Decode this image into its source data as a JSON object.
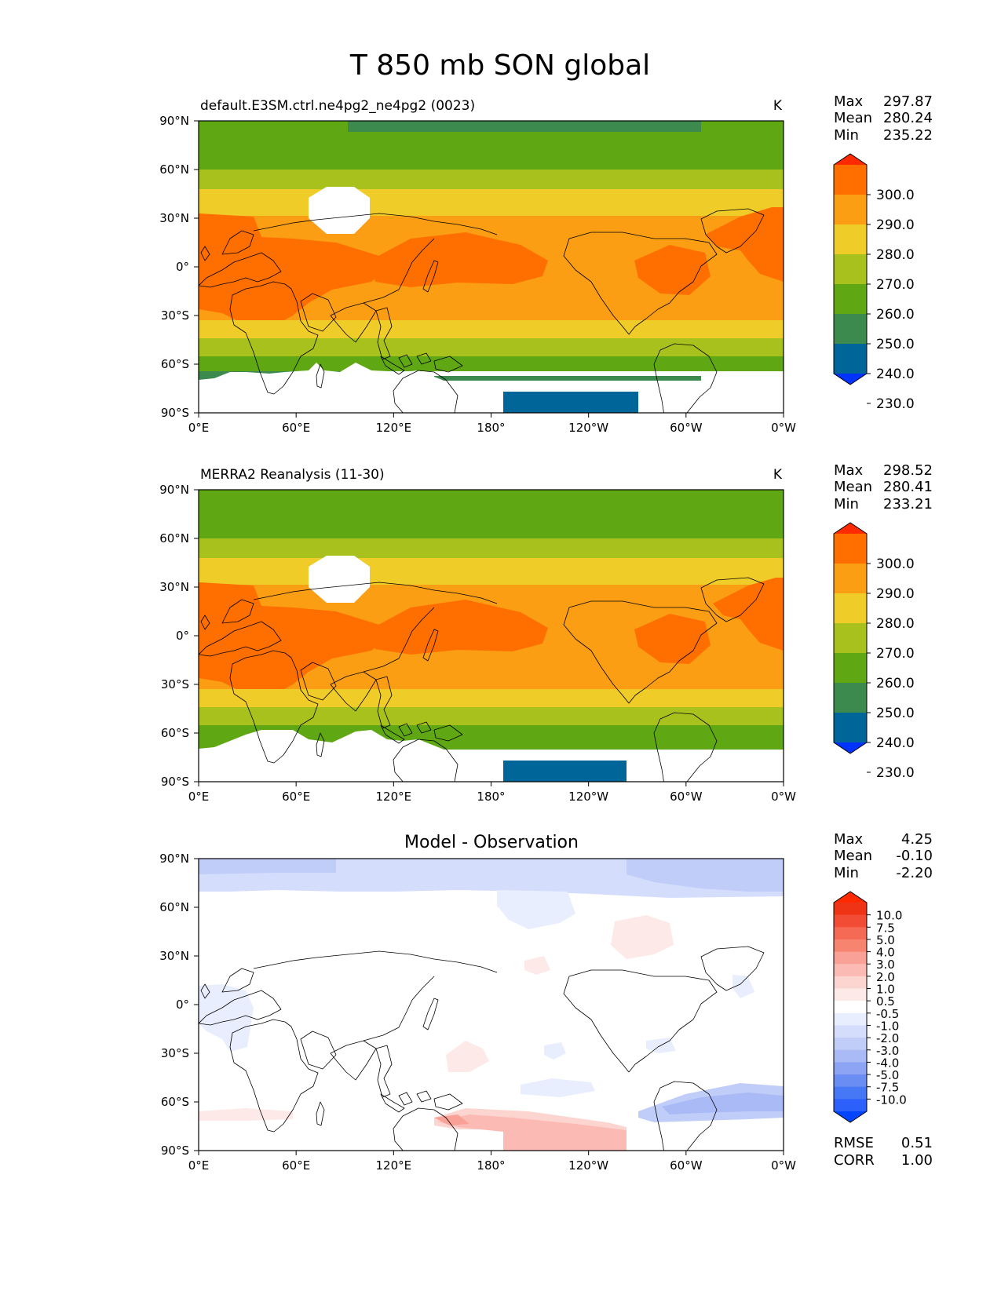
{
  "title": "T 850 mb SON global",
  "colors": {
    "test_palette": [
      "#0033ff",
      "#006699",
      "#3d8a4e",
      "#5fa814",
      "#a9c11c",
      "#f0cc28",
      "#fb9e14",
      "#ff6f00",
      "#ff2a00"
    ],
    "diff_palette": [
      "#0044ff",
      "#2c60fb",
      "#4677f5",
      "#6a8df3",
      "#8da4f4",
      "#a9baf6",
      "#c0cdf8",
      "#d4ddfb",
      "#e8eefd",
      "#ffffff",
      "#fde9e7",
      "#fcd4d0",
      "#fbbbb4",
      "#f9a196",
      "#f7846f",
      "#f56a54",
      "#f24c34",
      "#ef3315",
      "#ff2a00"
    ]
  },
  "chart_data": [
    {
      "type": "heatmap",
      "panel": "test",
      "title": "default.E3SM.ctrl.ne4pg2_ne4pg2 (0023)",
      "units": "K",
      "stats": {
        "labels": [
          "Max",
          "Mean",
          "Min"
        ],
        "values": [
          "297.87",
          "280.24",
          "235.22"
        ]
      },
      "colorbar": {
        "ticks": [
          "300.0",
          "290.0",
          "280.0",
          "270.0",
          "260.0",
          "250.0",
          "240.0",
          "230.0"
        ],
        "extend": "both"
      },
      "x_ticks": [
        "0°E",
        "60°E",
        "120°E",
        "180°",
        "120°W",
        "60°W",
        "0°W"
      ],
      "y_ticks": [
        "90°N",
        "60°N",
        "30°N",
        "0°",
        "30°S",
        "60°S",
        "90°S"
      ],
      "xlim": [
        0,
        360
      ],
      "ylim": [
        -90,
        90
      ],
      "zonal_bands": [
        {
          "lat": [
            -90,
            -75
          ],
          "value": null,
          "note": "masked below surface"
        },
        {
          "lat": [
            -75,
            -65
          ],
          "value": 245
        },
        {
          "lat": [
            -65,
            -57
          ],
          "value": 255
        },
        {
          "lat": [
            -57,
            -47
          ],
          "value": 265
        },
        {
          "lat": [
            -47,
            -35
          ],
          "value": 275
        },
        {
          "lat": [
            -35,
            35
          ],
          "value": 285
        },
        {
          "lat": [
            35,
            45
          ],
          "value": 275
        },
        {
          "lat": [
            45,
            60
          ],
          "value": 265
        },
        {
          "lat": [
            60,
            90
          ],
          "value": 255
        }
      ],
      "regions": [
        {
          "name": "tropical-africa",
          "value": 295
        },
        {
          "name": "tropical-west-pacific",
          "value": 295
        },
        {
          "name": "tropical-south-america",
          "value": 295
        },
        {
          "name": "north-africa-arabia",
          "value": 295
        },
        {
          "name": "arctic-asia",
          "value": 245
        },
        {
          "name": "ross-ice-shelf-sector",
          "value": 235
        },
        {
          "name": "tibet",
          "value": null
        }
      ]
    },
    {
      "type": "heatmap",
      "panel": "reference",
      "title": "MERRA2 Reanalysis (11-30)",
      "units": "K",
      "stats": {
        "labels": [
          "Max",
          "Mean",
          "Min"
        ],
        "values": [
          "298.52",
          "280.41",
          "233.21"
        ]
      },
      "colorbar": {
        "ticks": [
          "300.0",
          "290.0",
          "280.0",
          "270.0",
          "260.0",
          "250.0",
          "240.0",
          "230.0"
        ],
        "extend": "both"
      },
      "x_ticks": [
        "0°E",
        "60°E",
        "120°E",
        "180°",
        "120°W",
        "60°W",
        "0°W"
      ],
      "y_ticks": [
        "90°N",
        "60°N",
        "30°N",
        "0°",
        "30°S",
        "60°S",
        "90°S"
      ],
      "xlim": [
        0,
        360
      ],
      "ylim": [
        -90,
        90
      ],
      "zonal_bands": [
        {
          "lat": [
            -90,
            -75
          ],
          "value": null,
          "note": "masked below surface"
        },
        {
          "lat": [
            -75,
            -65
          ],
          "value": 245
        },
        {
          "lat": [
            -65,
            -57
          ],
          "value": 255
        },
        {
          "lat": [
            -57,
            -47
          ],
          "value": 265
        },
        {
          "lat": [
            -47,
            -35
          ],
          "value": 275
        },
        {
          "lat": [
            -35,
            35
          ],
          "value": 285
        },
        {
          "lat": [
            35,
            45
          ],
          "value": 275
        },
        {
          "lat": [
            45,
            60
          ],
          "value": 265
        },
        {
          "lat": [
            60,
            90
          ],
          "value": 255
        }
      ],
      "regions": [
        {
          "name": "tropical-africa",
          "value": 295
        },
        {
          "name": "tropical-west-pacific",
          "value": 295
        },
        {
          "name": "tropical-south-america",
          "value": 295
        },
        {
          "name": "north-africa-arabia",
          "value": 295
        },
        {
          "name": "ross-ice-shelf-sector",
          "value": 235
        },
        {
          "name": "tibet",
          "value": null
        }
      ]
    },
    {
      "type": "heatmap",
      "panel": "difference",
      "title": "Model - Observation",
      "stats": {
        "labels": [
          "Max",
          "Mean",
          "Min"
        ],
        "values": [
          "4.25",
          "-0.10",
          "-2.20"
        ]
      },
      "colorbar": {
        "ticks": [
          "10.0",
          "7.5",
          "5.0",
          "4.0",
          "3.0",
          "2.0",
          "1.0",
          "0.5",
          "-0.5",
          "-1.0",
          "-2.0",
          "-3.0",
          "-4.0",
          "-5.0",
          "-7.5",
          "-10.0"
        ],
        "extend": "both"
      },
      "metrics": {
        "labels": [
          "RMSE",
          "CORR"
        ],
        "values": [
          "0.51",
          "1.00"
        ]
      },
      "x_ticks": [
        "0°E",
        "60°E",
        "120°E",
        "180°",
        "120°W",
        "60°W",
        "0°W"
      ],
      "y_ticks": [
        "90°N",
        "60°N",
        "30°N",
        "0°",
        "30°S",
        "60°S",
        "90°S"
      ],
      "xlim": [
        0,
        360
      ],
      "ylim": [
        -90,
        90
      ],
      "regions": [
        {
          "name": "arctic",
          "value": -1.5
        },
        {
          "name": "north-pacific",
          "value": -0.75
        },
        {
          "name": "eastern-north-america",
          "value": 0.75
        },
        {
          "name": "central-north-pacific",
          "value": 0.75
        },
        {
          "name": "tropical-atlantic-africa",
          "value": -0.75
        },
        {
          "name": "tasman-sea",
          "value": 0.75
        },
        {
          "name": "southern-ocean-pacific-atlantic",
          "value": -1.5
        },
        {
          "name": "ross-sea-sector",
          "value": 1.5
        }
      ]
    }
  ]
}
